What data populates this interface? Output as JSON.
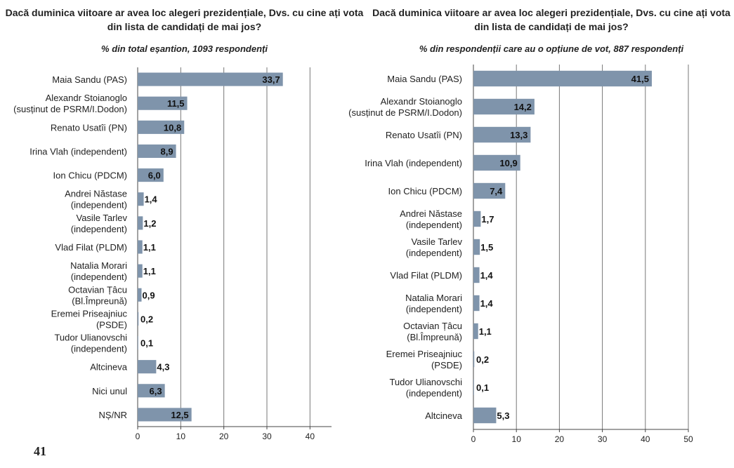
{
  "page_number": "41",
  "chart_data": [
    {
      "type": "bar",
      "orientation": "horizontal",
      "title": "Dacă duminica viitoare ar avea loc alegeri prezidențiale, Dvs. cu cine ați vota din lista de candidați de mai jos?",
      "title_lines": [
        "Dacă duminica viitoare ar avea loc alegeri prezidențiale, Dvs. cu cine ați vota",
        "din lista de candidați de mai jos?"
      ],
      "subtitle": "% din total eșantion, 1093 respondenți",
      "categories": [
        [
          "Maia Sandu (PAS)"
        ],
        [
          "Alexandr Stoianoglo",
          "(susținut de PSRM/I.Dodon)"
        ],
        [
          "Renato Usatîi (PN)"
        ],
        [
          "Irina Vlah (independent)"
        ],
        [
          "Ion Chicu (PDCM)"
        ],
        [
          "Andrei Năstase",
          "(independent)"
        ],
        [
          "Vasile Tarlev",
          "(independent)"
        ],
        [
          "Vlad Filat (PLDM)"
        ],
        [
          "Natalia Morari",
          "(independent)"
        ],
        [
          "Octavian Țâcu",
          "(Bl.Împreună)"
        ],
        [
          "Eremei Priseajniuc",
          "(PSDE)"
        ],
        [
          "Tudor Ulianovschi",
          "(independent)"
        ],
        [
          "Altcineva"
        ],
        [
          "Nici unul"
        ],
        [
          "NȘ/NR"
        ]
      ],
      "values": [
        33.7,
        11.5,
        10.8,
        8.9,
        6.0,
        1.4,
        1.2,
        1.1,
        1.1,
        0.9,
        0.2,
        0.1,
        4.3,
        6.3,
        12.5
      ],
      "value_labels": [
        "33,7",
        "11,5",
        "10,8",
        "8,9",
        "6,0",
        "1,4",
        "1,2",
        "1,1",
        "1,1",
        "0,9",
        "0,2",
        "0,1",
        "4,3",
        "6,3",
        "12,5"
      ],
      "xticks": [
        "0",
        "10",
        "20",
        "30",
        "40"
      ],
      "xlim": [
        0,
        45
      ],
      "grid": true,
      "bar_color": "#7f94ab"
    },
    {
      "type": "bar",
      "orientation": "horizontal",
      "title": "Dacă duminica viitoare ar avea loc alegeri prezidențiale, Dvs. cu cine ați vota din lista de candidați de mai jos?",
      "title_lines": [
        "Dacă duminica viitoare ar avea loc alegeri prezidențiale, Dvs. cu cine ați vota",
        "din lista de candidați de mai jos?"
      ],
      "subtitle": "% din respondenții care au o opțiune de vot, 887 respondenți",
      "categories": [
        [
          "Maia Sandu (PAS)"
        ],
        [
          "Alexandr Stoianoglo",
          "(susținut de PSRM/I.Dodon)"
        ],
        [
          "Renato Usatîi (PN)"
        ],
        [
          "Irina Vlah (independent)"
        ],
        [
          "Ion Chicu (PDCM)"
        ],
        [
          "Andrei Năstase",
          "(independent)"
        ],
        [
          "Vasile Tarlev",
          "(independent)"
        ],
        [
          "Vlad Filat (PLDM)"
        ],
        [
          "Natalia Morari",
          "(independent)"
        ],
        [
          "Octavian Țâcu",
          "(Bl.Împreună)"
        ],
        [
          "Eremei Priseajniuc",
          "(PSDE)"
        ],
        [
          "Tudor Ulianovschi",
          "(independent)"
        ],
        [
          "Altcineva"
        ]
      ],
      "values": [
        41.5,
        14.2,
        13.3,
        10.9,
        7.4,
        1.7,
        1.5,
        1.4,
        1.4,
        1.1,
        0.2,
        0.1,
        5.3
      ],
      "value_labels": [
        "41,5",
        "14,2",
        "13,3",
        "10,9",
        "7,4",
        "1,7",
        "1,5",
        "1,4",
        "1,4",
        "1,1",
        "0,2",
        "0,1",
        "5,3"
      ],
      "xticks": [
        "0",
        "10",
        "20",
        "30",
        "40",
        "50"
      ],
      "xlim": [
        0,
        50
      ],
      "grid": true,
      "bar_color": "#7f94ab"
    }
  ]
}
